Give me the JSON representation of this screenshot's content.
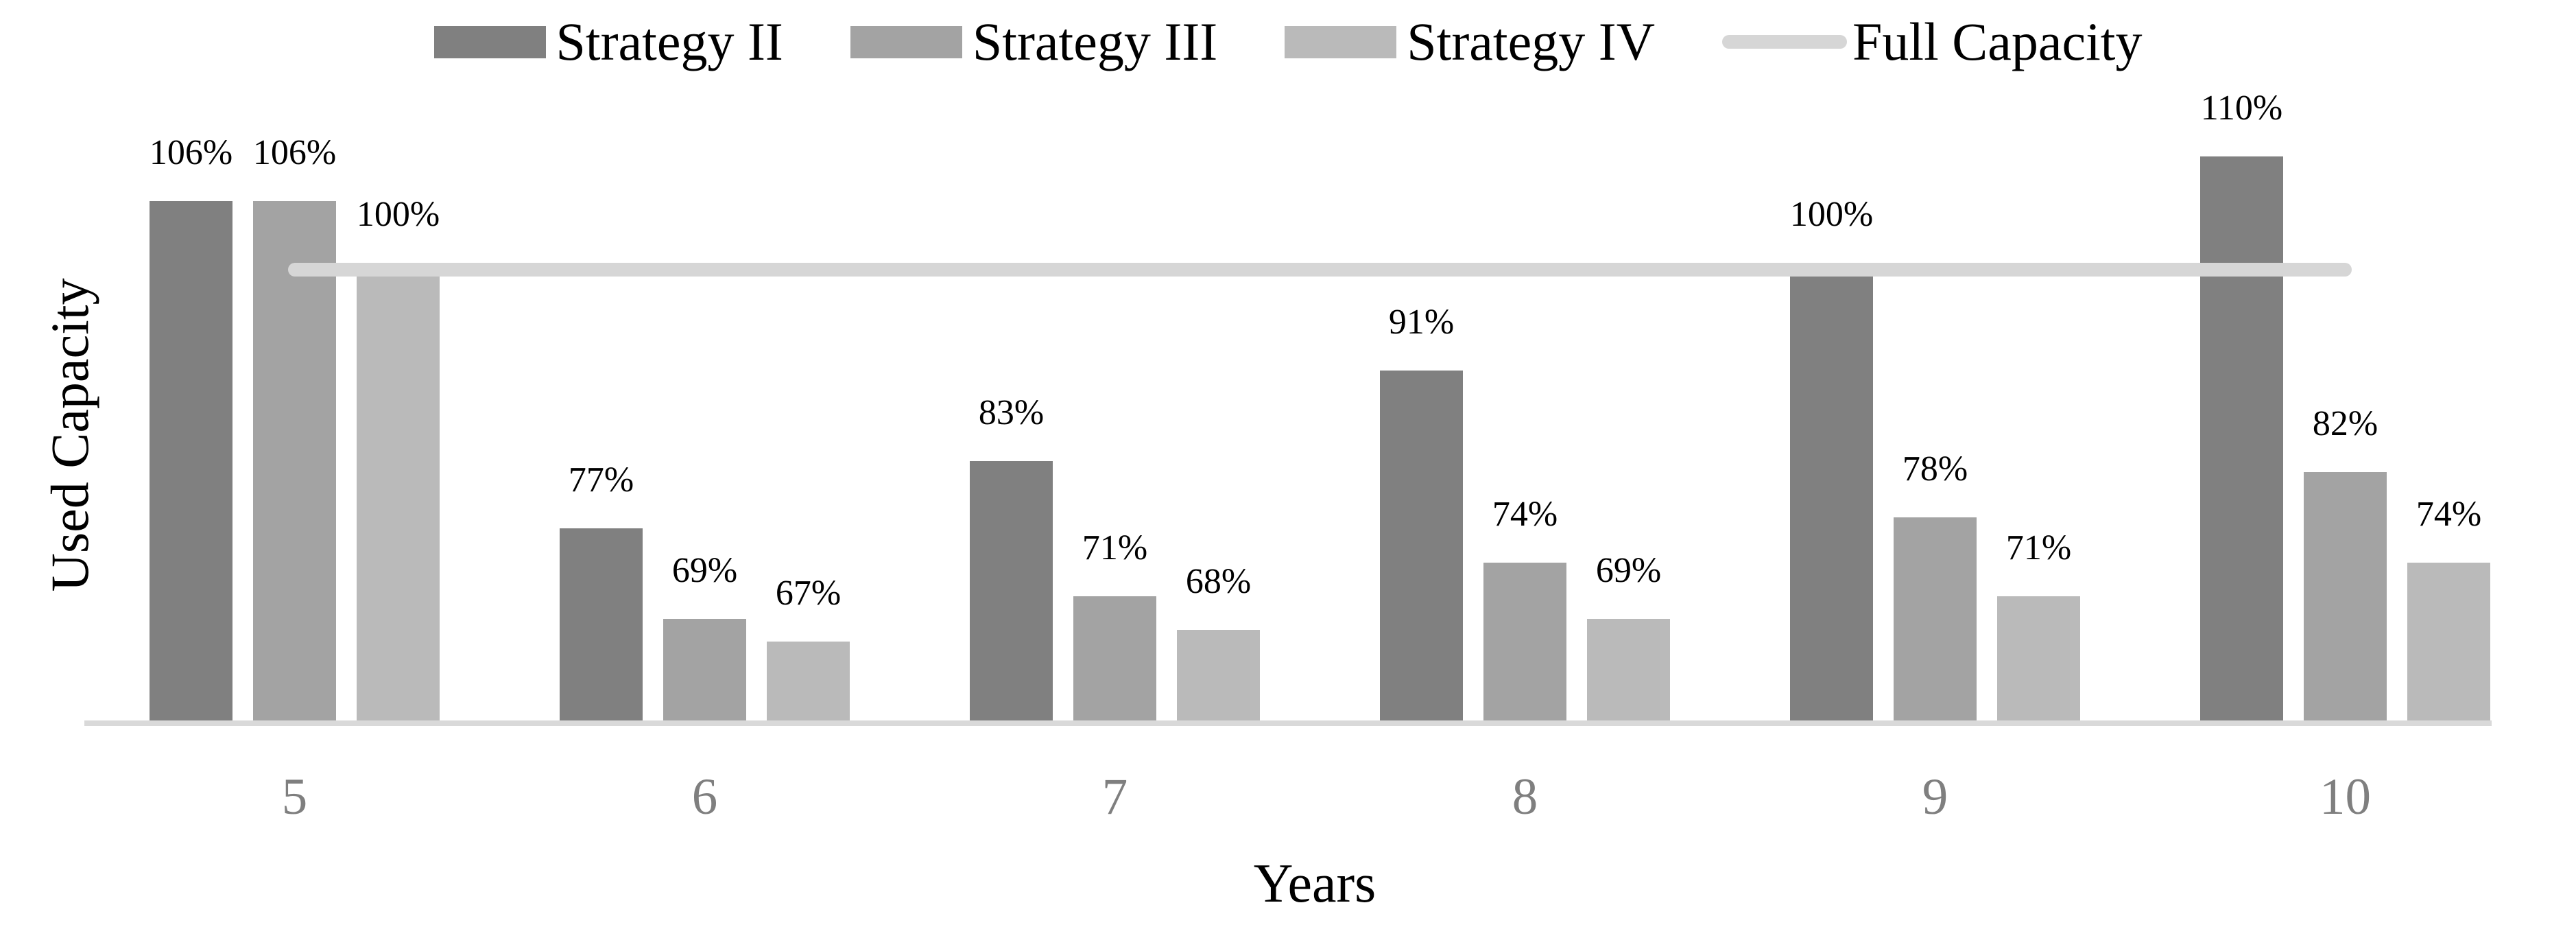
{
  "legend": {
    "items": [
      {
        "label": "Strategy II",
        "color": "#808080",
        "type": "box"
      },
      {
        "label": "Strategy III",
        "color": "#a3a3a3",
        "type": "box"
      },
      {
        "label": "Strategy IV",
        "color": "#bababa",
        "type": "box"
      },
      {
        "label": "Full Capacity",
        "color": "#d6d6d6",
        "type": "line"
      }
    ]
  },
  "chart_data": {
    "type": "bar",
    "title": "",
    "categories": [
      "5",
      "6",
      "7",
      "8",
      "9",
      "10"
    ],
    "series": [
      {
        "name": "Strategy II",
        "color": "#808080",
        "values": [
          106,
          77,
          83,
          91,
          100,
          110
        ],
        "labels": [
          "106%",
          "77%",
          "83%",
          "91%",
          "100%",
          "110%"
        ]
      },
      {
        "name": "Strategy III",
        "color": "#a3a3a3",
        "values": [
          106,
          69,
          71,
          74,
          78,
          82
        ],
        "labels": [
          "106%",
          "69%",
          "71%",
          "74%",
          "78%",
          "82%"
        ]
      },
      {
        "name": "Strategy IV",
        "color": "#bababa",
        "values": [
          100,
          67,
          68,
          69,
          71,
          74
        ],
        "labels": [
          "100%",
          "67%",
          "68%",
          "69%",
          "71%",
          "74%"
        ]
      }
    ],
    "reference_line": {
      "name": "Full Capacity",
      "value": 100,
      "color": "#d6d6d6"
    },
    "xlabel": "Years",
    "ylabel": "Used Capacity",
    "axes": {
      "y_min": 60,
      "y_axis_labels_visible": false,
      "x_tick_color": "#7f7f7f",
      "baseline_color": "#d9d9d9"
    },
    "legend_position": "top",
    "grid": false
  }
}
